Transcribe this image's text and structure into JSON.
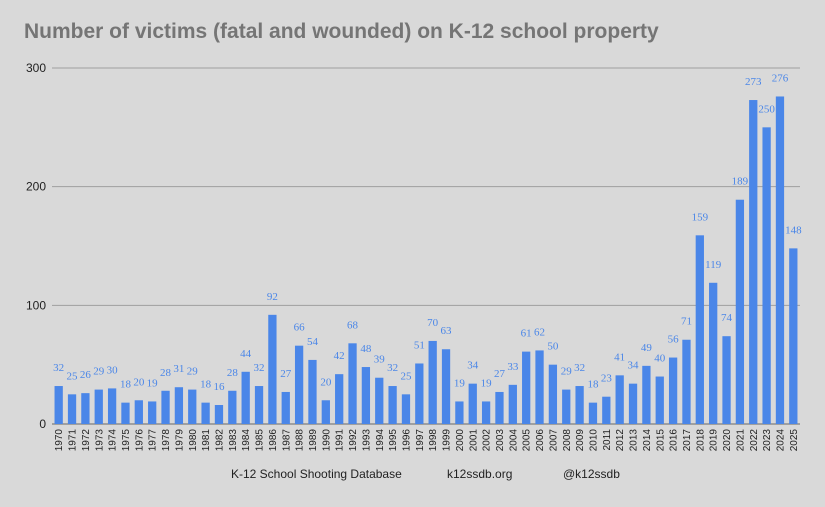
{
  "title": "Number of victims (fatal and wounded) on K-12 school property",
  "footer": {
    "source": "K-12 School Shooting Database",
    "site": "k12ssdb.org",
    "handle": "@k12ssdb"
  },
  "colors": {
    "background": "#d9d9d9",
    "bar": "#4a86e8",
    "data_label": "#4a86e8",
    "grid": "#9e9e9e",
    "title": "#757575",
    "axis_text": "#222222"
  },
  "chart_data": {
    "type": "bar",
    "title": "Number of victims (fatal and wounded) on K-12 school property",
    "xlabel": "",
    "ylabel": "",
    "ylim": [
      0,
      300
    ],
    "yticks": [
      0,
      100,
      200,
      300
    ],
    "grid": true,
    "legend": "none",
    "categories": [
      "1970",
      "1971",
      "1972",
      "1973",
      "1974",
      "1975",
      "1976",
      "1977",
      "1978",
      "1979",
      "1980",
      "1981",
      "1982",
      "1983",
      "1984",
      "1985",
      "1986",
      "1987",
      "1988",
      "1989",
      "1990",
      "1991",
      "1992",
      "1993",
      "1994",
      "1995",
      "1996",
      "1997",
      "1998",
      "1999",
      "2000",
      "2001",
      "2002",
      "2003",
      "2004",
      "2005",
      "2006",
      "2007",
      "2008",
      "2009",
      "2010",
      "2011",
      "2012",
      "2013",
      "2014",
      "2015",
      "2016",
      "2017",
      "2018",
      "2019",
      "2020",
      "2021",
      "2022",
      "2023",
      "2024",
      "2025"
    ],
    "values": [
      32,
      25,
      26,
      29,
      30,
      18,
      20,
      19,
      28,
      31,
      29,
      18,
      16,
      28,
      44,
      32,
      92,
      27,
      66,
      54,
      20,
      42,
      68,
      48,
      39,
      32,
      25,
      51,
      70,
      63,
      19,
      34,
      19,
      27,
      33,
      61,
      62,
      50,
      29,
      32,
      18,
      23,
      41,
      34,
      49,
      40,
      56,
      71,
      159,
      119,
      74,
      189,
      273,
      250,
      276,
      148
    ]
  }
}
